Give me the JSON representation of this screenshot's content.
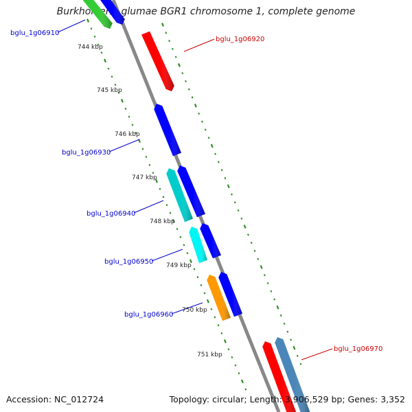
{
  "title": "Burkholderia glumae BGR1 chromosome 1, complete genome",
  "footer": {
    "accession": "Accession: NC_012724",
    "summary": "Topology: circular; Length: 3,906,529 bp; Genes: 3,352"
  },
  "ticks": [
    "744 kbp",
    "745 kbp",
    "746 kbp",
    "747 kbp",
    "748 kbp",
    "749 kbp",
    "750 kbp",
    "751 kbp"
  ],
  "gene_labels": [
    {
      "id": "bglu_1g06910",
      "color": "#0000cc"
    },
    {
      "id": "bglu_1g06920",
      "color": "#cc0000"
    },
    {
      "id": "bglu_1g06930",
      "color": "#0000cc"
    },
    {
      "id": "bglu_1g06940",
      "color": "#0000cc"
    },
    {
      "id": "bglu_1g06950",
      "color": "#0000cc"
    },
    {
      "id": "bglu_1g06960",
      "color": "#0000cc"
    },
    {
      "id": "bglu_1g06970",
      "color": "#cc0000"
    }
  ],
  "colors": {
    "backbone": "#888888",
    "tick_dots": "#2e8b22",
    "red": "#ff0000",
    "blue": "#0000ff",
    "cyan": "#00cccc",
    "bright_cyan": "#00f5f5",
    "orange": "#ff9900",
    "green": "#33cc33",
    "steelblue": "#4a86b8"
  }
}
